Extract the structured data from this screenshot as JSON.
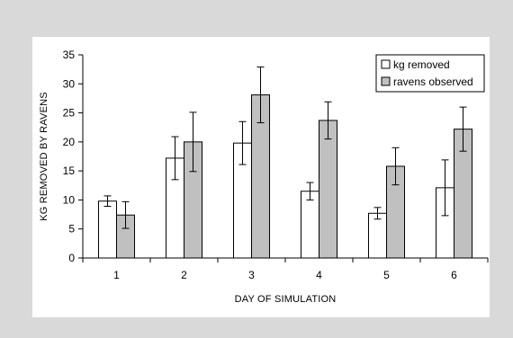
{
  "chart_data": {
    "type": "bar",
    "xlabel": "DAY OF SIMULATION",
    "ylabel": "KG REMOVED BY RAVENS",
    "ylim": [
      0,
      35
    ],
    "yticks": [
      0,
      5,
      10,
      15,
      20,
      25,
      30,
      35
    ],
    "categories": [
      "1",
      "2",
      "3",
      "4",
      "5",
      "6"
    ],
    "series": [
      {
        "name": "kg removed",
        "color": "#ffffff",
        "values": [
          9.8,
          17.2,
          19.8,
          11.5,
          7.7,
          12.1
        ],
        "error": [
          0.9,
          3.7,
          3.7,
          1.5,
          1.0,
          4.8
        ]
      },
      {
        "name": "ravens observed",
        "color": "#c0c0c0",
        "values": [
          7.4,
          20.0,
          28.1,
          23.7,
          15.8,
          22.2
        ],
        "error": [
          2.3,
          5.1,
          4.8,
          3.2,
          3.2,
          3.8
        ]
      }
    ],
    "legend_position": "top-right",
    "grid": false
  }
}
